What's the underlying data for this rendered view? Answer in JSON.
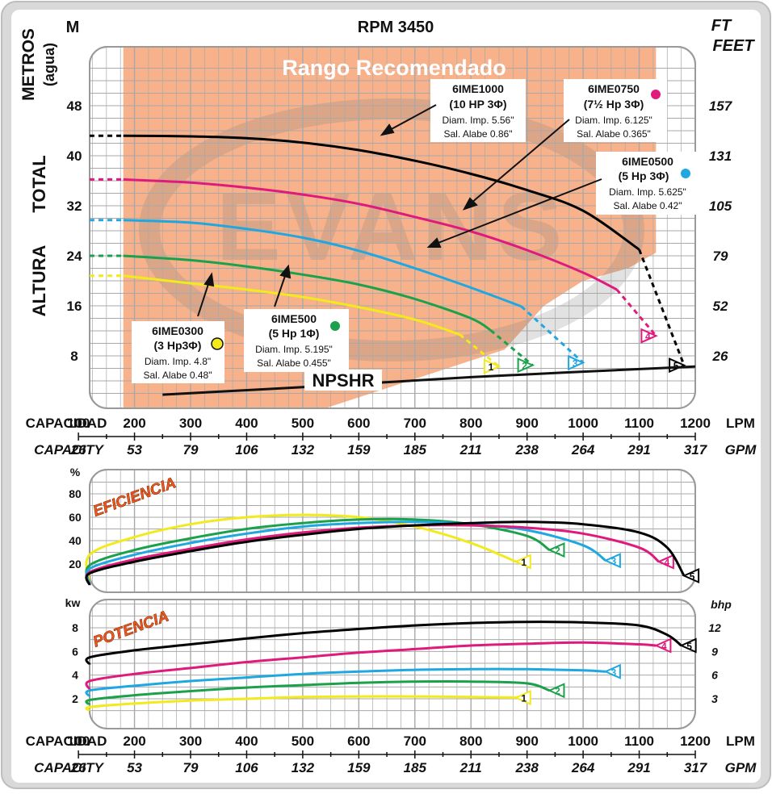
{
  "page": {
    "rpm_title": "RPM 3450",
    "left_unit": "M",
    "right_unit_ft": "FT",
    "right_unit_feet": "FEET",
    "metros": "METROS",
    "agua": "(agua)",
    "total": "TOTAL",
    "altura": "ALTURA",
    "rango": "Rango Recomendado",
    "npshr": "NPSHR",
    "capacidad": "CAPACIDAD",
    "capacity": "CAPACITY",
    "lpm": "LPM",
    "gpm": "GPM",
    "eficiencia": "EFICIENCIA",
    "pct": "%",
    "potencia": "POTENCIA",
    "kw": "kw",
    "bhp": "bhp",
    "watermark": "EVANS"
  },
  "colors": {
    "recommended_band": "#f7b28b",
    "grid_bg": "#ffffff",
    "frame": "#d9d9d9",
    "panel_border": "#9a9a9a",
    "grid_line": "#aaaaaa",
    "pump1": "#f2ea1c",
    "pump2": "#1ba14b",
    "pump3": "#1ea7e0",
    "pump4": "#e0197c",
    "pump5": "#000000"
  },
  "pump_labels": [
    {
      "name": "6IME0300",
      "line2": "(3 Hp3Φ)",
      "line3": "Diam. Imp. 4.8\"",
      "line4": "Sal. Alabe 0.48\"",
      "dot": "#f2ea1c"
    },
    {
      "name": "6IME500",
      "line2": "(5 Hp 1Φ)",
      "line3": "Diam. Imp. 5.195\"",
      "line4": "Sal. Alabe 0.455\"",
      "dot": "#1ba14b"
    },
    {
      "name": "6IME0500",
      "line2": "(5 Hp 3Φ)",
      "line3": "Diam. Imp. 5.625\"",
      "line4": "Sal. Alabe 0.42\"",
      "dot": "#1ea7e0"
    },
    {
      "name": "6IME0750",
      "line2": "(7½ Hp 3Φ)",
      "line3": "Diam. Imp. 6.125\"",
      "line4": "Sal. Alabe 0.365\"",
      "dot": "#e0197c"
    },
    {
      "name": "6IME1000",
      "line2": "(10 HP 3Φ)",
      "line3": "Diam. Imp. 5.56\"",
      "line4": "Sal. Alabe 0.86\"",
      "dot": null
    }
  ],
  "chart_data": [
    {
      "type": "line",
      "title": "RPM 3450",
      "xlabel": "CAPACIDAD / CAPACITY",
      "ylabel": "METROS (agua) TOTAL ALTURA",
      "xlim": [
        0,
        1200
      ],
      "ylim": [
        0,
        56
      ],
      "x_ticks_lpm": [
        100,
        200,
        300,
        400,
        500,
        600,
        700,
        800,
        900,
        1000,
        1100,
        1200
      ],
      "x_ticks_gpm": [
        "26",
        "53",
        "79",
        "106",
        "132",
        "159",
        "185",
        "211",
        "238",
        "264",
        "291",
        "317"
      ],
      "y_ticks_m": [
        8,
        16,
        24,
        32,
        40,
        48
      ],
      "y_ticks_ft": [
        "26",
        "52",
        "79",
        "105",
        "131",
        "157"
      ],
      "recommended_range_lpm": [
        180,
        1130
      ],
      "series": [
        {
          "name": "6IME0300",
          "tag": "1",
          "color": "#f2ea1c",
          "x": [
            0,
            180,
            300,
            400,
            500,
            600,
            700,
            780,
            850
          ],
          "y": [
            20.8,
            20.8,
            19.6,
            18.6,
            17.4,
            15.8,
            13.8,
            11.4,
            6.3
          ],
          "solid_from": 180,
          "dash_from": 780
        },
        {
          "name": "6IME500",
          "tag": "2",
          "color": "#1ba14b",
          "x": [
            0,
            180,
            300,
            400,
            500,
            600,
            700,
            800,
            835,
            910
          ],
          "y": [
            24.0,
            24.0,
            23.3,
            22.3,
            21.0,
            19.4,
            17.1,
            14.0,
            12.1,
            6.5
          ],
          "solid_from": 180,
          "dash_from": 835
        },
        {
          "name": "6IME0500",
          "tag": "3",
          "color": "#1ea7e0",
          "x": [
            0,
            180,
            300,
            400,
            500,
            600,
            700,
            800,
            890,
            1000
          ],
          "y": [
            29.7,
            29.7,
            29.3,
            28.3,
            26.9,
            24.8,
            22.0,
            18.9,
            15.9,
            6.9
          ],
          "solid_from": 180,
          "dash_from": 890
        },
        {
          "name": "6IME0750",
          "tag": "4",
          "color": "#e0197c",
          "x": [
            0,
            180,
            300,
            400,
            500,
            600,
            700,
            800,
            900,
            1000,
            1060,
            1130
          ],
          "y": [
            36.2,
            36.2,
            35.7,
            34.9,
            33.8,
            32.3,
            30.2,
            27.9,
            24.9,
            21.3,
            18.6,
            11.2
          ],
          "solid_from": 180,
          "dash_from": 1060
        },
        {
          "name": "6IME1000",
          "tag": "5",
          "color": "#000000",
          "x": [
            0,
            180,
            300,
            400,
            500,
            600,
            700,
            800,
            900,
            1000,
            1100,
            1180
          ],
          "y": [
            43.2,
            43.2,
            43.1,
            42.8,
            42.1,
            40.9,
            39.2,
            37.1,
            34.5,
            31.2,
            25.0,
            6.5
          ],
          "solid_from": 180,
          "dash_from": 1100
        },
        {
          "name": "NPSHR",
          "tag": "",
          "color": "#000000",
          "x": [
            250,
            500,
            800,
            1200
          ],
          "y": [
            1.8,
            3.0,
            4.6,
            6.3
          ]
        }
      ]
    },
    {
      "type": "line",
      "title": "EFICIENCIA",
      "ylabel": "%",
      "xlim": [
        0,
        1200
      ],
      "ylim": [
        0,
        90
      ],
      "y_ticks": [
        20,
        40,
        60,
        80
      ],
      "series": [
        {
          "name": "6IME0300",
          "tag": "1",
          "color": "#f2ea1c",
          "x": [
            0,
            100,
            200,
            300,
            400,
            500,
            600,
            700,
            800,
            880
          ],
          "y": [
            4,
            28,
            43,
            54,
            60,
            62,
            60,
            52,
            38,
            22
          ]
        },
        {
          "name": "6IME500",
          "tag": "2",
          "color": "#1ba14b",
          "x": [
            0,
            100,
            200,
            300,
            400,
            500,
            600,
            700,
            800,
            900,
            940
          ],
          "y": [
            3,
            19,
            32,
            42,
            50,
            55,
            58,
            58,
            54,
            44,
            32
          ]
        },
        {
          "name": "6IME0500",
          "tag": "3",
          "color": "#1ea7e0",
          "x": [
            0,
            100,
            200,
            300,
            400,
            500,
            600,
            700,
            800,
            900,
            1000,
            1040
          ],
          "y": [
            3,
            16,
            28,
            38,
            46,
            52,
            55,
            56,
            54,
            49,
            36,
            23
          ]
        },
        {
          "name": "6IME0750",
          "tag": "4",
          "color": "#e0197c",
          "x": [
            0,
            100,
            200,
            300,
            400,
            500,
            600,
            700,
            800,
            900,
            1000,
            1100,
            1135
          ],
          "y": [
            2,
            13,
            24,
            33,
            41,
            47,
            51,
            53,
            53,
            51,
            46,
            34,
            22
          ]
        },
        {
          "name": "6IME1000",
          "tag": "5",
          "color": "#000000",
          "x": [
            0,
            100,
            200,
            300,
            400,
            500,
            600,
            700,
            800,
            900,
            1000,
            1100,
            1150,
            1180
          ],
          "y": [
            2,
            12,
            22,
            31,
            39,
            45,
            50,
            53,
            55,
            56,
            54,
            47,
            34,
            10
          ]
        }
      ]
    },
    {
      "type": "line",
      "title": "POTENCIA",
      "ylabel": "kw",
      "y2label": "bhp",
      "xlim": [
        0,
        1200
      ],
      "ylim": [
        0,
        10
      ],
      "y_ticks": [
        2,
        4,
        6,
        8
      ],
      "y2_ticks": [
        "3",
        "6",
        "9",
        "12"
      ],
      "series": [
        {
          "name": "6IME0300",
          "tag": "1",
          "color": "#f2ea1c",
          "x": [
            0,
            100,
            200,
            300,
            400,
            500,
            600,
            700,
            800,
            880
          ],
          "y": [
            1.0,
            1.3,
            1.6,
            1.85,
            2.0,
            2.15,
            2.2,
            2.2,
            2.15,
            2.1
          ]
        },
        {
          "name": "6IME500",
          "tag": "2",
          "color": "#1ba14b",
          "x": [
            0,
            100,
            200,
            300,
            400,
            500,
            600,
            700,
            800,
            900,
            940
          ],
          "y": [
            1.5,
            1.9,
            2.3,
            2.65,
            2.95,
            3.15,
            3.35,
            3.45,
            3.45,
            3.3,
            2.7
          ]
        },
        {
          "name": "6IME0500",
          "tag": "3",
          "color": "#1ea7e0",
          "x": [
            0,
            100,
            200,
            300,
            400,
            500,
            600,
            700,
            800,
            900,
            1000,
            1040
          ],
          "y": [
            2.2,
            2.7,
            3.1,
            3.5,
            3.8,
            4.1,
            4.3,
            4.45,
            4.5,
            4.5,
            4.4,
            4.3
          ]
        },
        {
          "name": "6IME0750",
          "tag": "4",
          "color": "#e0197c",
          "x": [
            0,
            100,
            200,
            300,
            400,
            500,
            600,
            700,
            800,
            900,
            1000,
            1100,
            1130
          ],
          "y": [
            2.8,
            3.5,
            4.1,
            4.6,
            5.1,
            5.5,
            5.9,
            6.2,
            6.5,
            6.65,
            6.75,
            6.6,
            6.5
          ]
        },
        {
          "name": "6IME1000",
          "tag": "5",
          "color": "#000000",
          "x": [
            0,
            100,
            200,
            300,
            400,
            500,
            600,
            700,
            800,
            900,
            1000,
            1100,
            1150,
            1175
          ],
          "y": [
            4.9,
            5.5,
            6.1,
            6.6,
            7.1,
            7.55,
            7.9,
            8.2,
            8.4,
            8.5,
            8.45,
            8.2,
            7.4,
            6.5
          ]
        }
      ]
    }
  ]
}
